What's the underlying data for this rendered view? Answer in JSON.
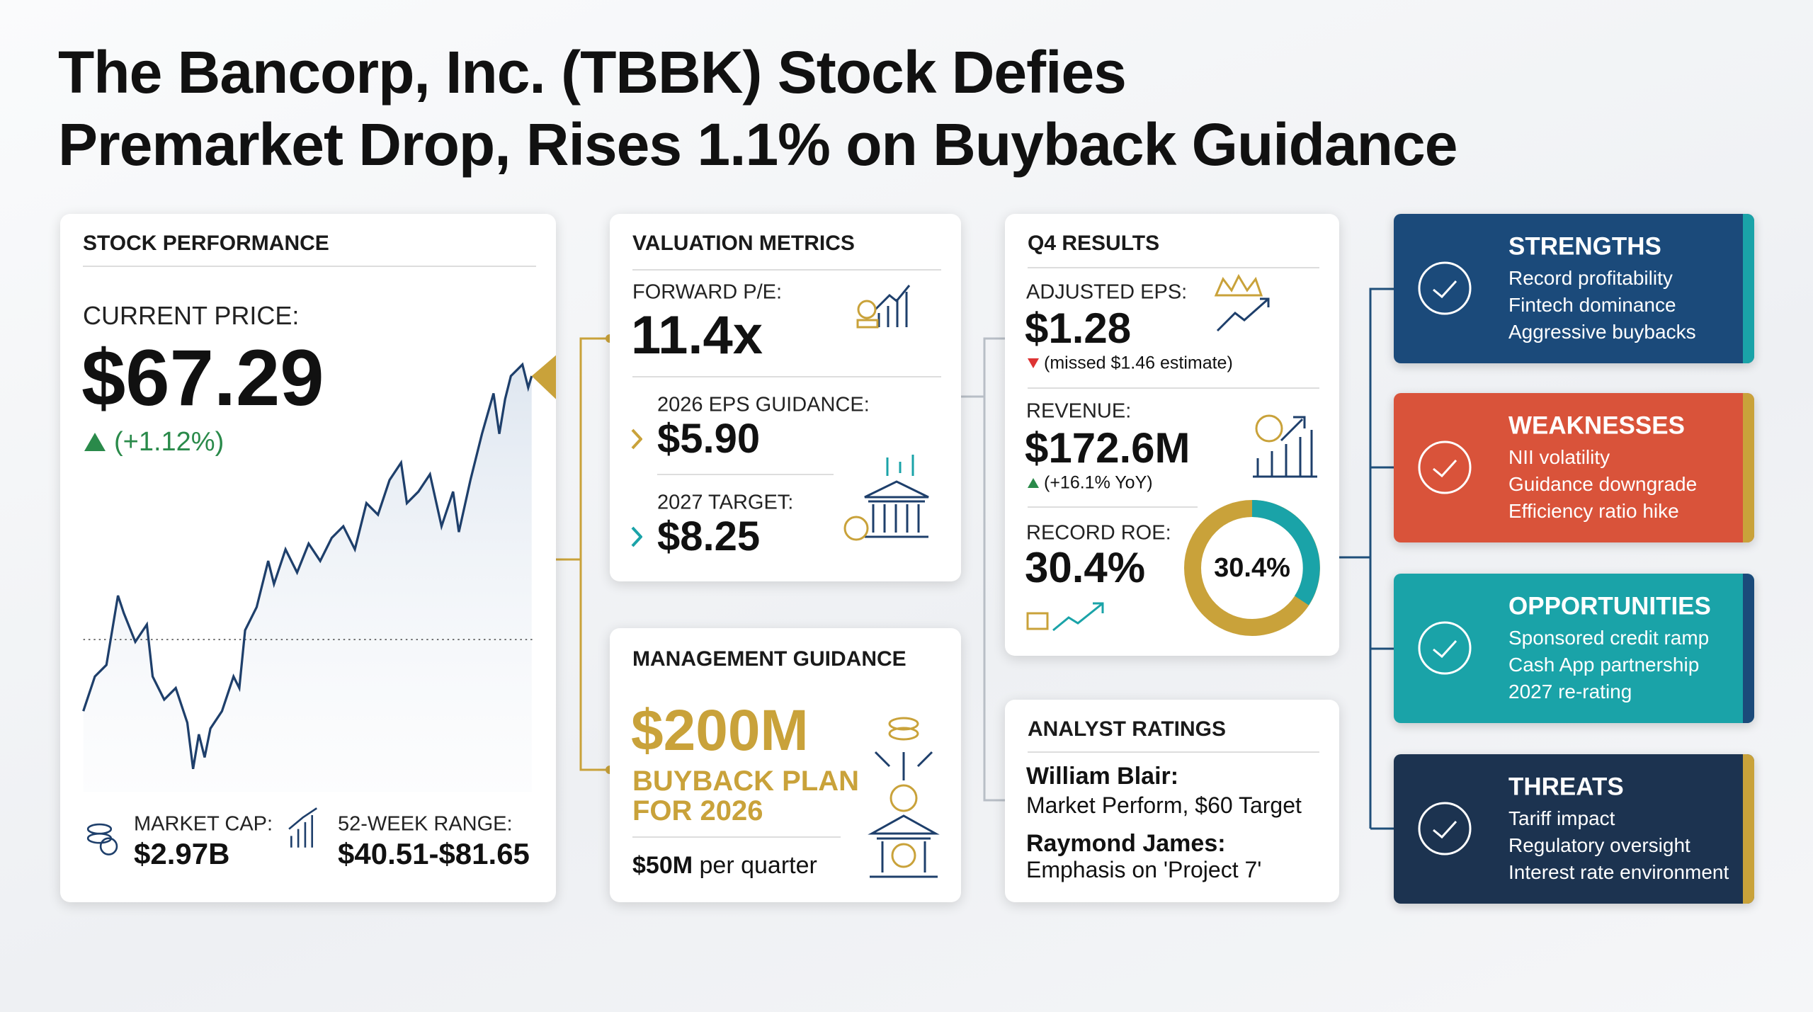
{
  "title": [
    "The Bancorp, Inc. (TBBK) Stock Defies",
    "Premarket Drop, Rises 1.1% on Buyback Guidance"
  ],
  "stock_performance": {
    "heading": "STOCK PERFORMANCE",
    "price_label": "CURRENT PRICE:",
    "price": "$67.29",
    "change": "(+1.12%)",
    "market_cap_label": "MARKET CAP:",
    "market_cap": "$2.97B",
    "range_label": "52-WEEK RANGE:",
    "range": "$40.51-$81.65"
  },
  "valuation": {
    "heading": "VALUATION METRICS",
    "pe_label": "FORWARD P/E:",
    "pe": "11.4x",
    "eps_label": "2026 EPS GUIDANCE:",
    "eps": "$5.90",
    "target_label": "2027 TARGET:",
    "target": "$8.25"
  },
  "guidance": {
    "heading": "MANAGEMENT GUIDANCE",
    "amount": "$200M",
    "plan": [
      "BUYBACK PLAN",
      "FOR 2026"
    ],
    "quarterly": "$50M",
    "quarterly_suffix": "per quarter"
  },
  "q4": {
    "heading": "Q4 RESULTS",
    "eps_label": "ADJUSTED EPS:",
    "eps": "$1.28",
    "eps_note": "(missed $1.46 estimate)",
    "revenue_label": "REVENUE:",
    "revenue": "$172.6M",
    "revenue_note": "(+16.1% YoY)",
    "roe_label": "RECORD ROE:",
    "roe": "30.4%"
  },
  "analysts": {
    "heading": "ANALYST RATINGS",
    "ratings": [
      {
        "firm": "William Blair:",
        "view": "Market Perform, $60 Target"
      },
      {
        "firm": "Raymond James:",
        "view": "Emphasis on 'Project 7'"
      }
    ]
  },
  "swot": [
    {
      "heading": "STRENGTHS",
      "items": [
        "Record profitability",
        "Fintech dominance",
        "Aggressive buybacks"
      ]
    },
    {
      "heading": "WEAKNESSES",
      "items": [
        "NII volatility",
        "Guidance downgrade",
        "Efficiency ratio hike"
      ]
    },
    {
      "heading": "OPPORTUNITIES",
      "items": [
        "Sponsored credit ramp",
        "Cash App partnership",
        "2027 re-rating"
      ]
    },
    {
      "heading": "THREATS",
      "items": [
        "Tariff impact",
        "Regulatory oversight",
        "Interest rate environment"
      ]
    }
  ]
}
